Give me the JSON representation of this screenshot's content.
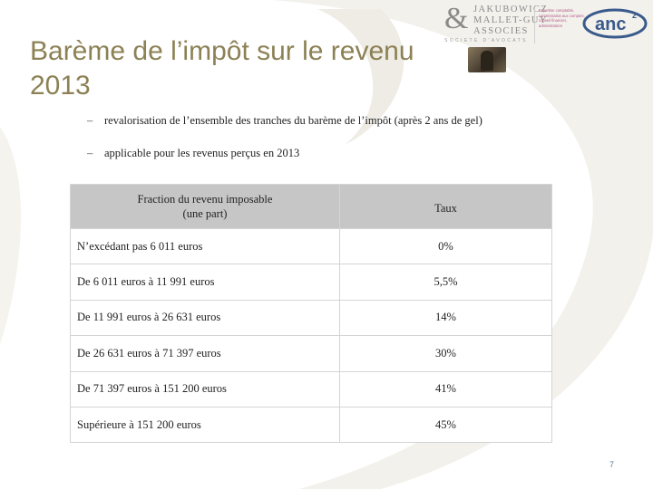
{
  "slide": {
    "title": "Barème de l’impôt sur le revenu 2013",
    "page_number": "7"
  },
  "logos": {
    "jmg": {
      "ampersand": "&",
      "line1": "JAKUBOWICZ",
      "line2": "MALLET-GUY",
      "line3": "ASSOCIES",
      "tagline": "SOCIETE D'AVOCATS"
    },
    "anc": {
      "small_text": "Expertise comptable, commissariat aux comptes, conseil financier, administration",
      "name": "anc",
      "superscript": "2",
      "brand_color": "#3a5a8c"
    }
  },
  "bullets": [
    {
      "dash": "–",
      "text": "revalorisation de l’ensemble des tranches du barème de l’impôt (après 2 ans de gel)"
    },
    {
      "dash": "–",
      "text": "applicable pour les revenus perçus en 2013"
    }
  ],
  "table": {
    "headers": {
      "col1_line1": "Fraction du revenu imposable",
      "col1_line2": "(une part)",
      "col2": "Taux"
    },
    "rows": [
      {
        "tranche": "N’excédant pas 6 011 euros",
        "taux": "0%"
      },
      {
        "tranche": "De 6 011 euros à 11 991 euros",
        "taux": "5,5%"
      },
      {
        "tranche": "De 11 991 euros à 26 631 euros",
        "taux": "14%"
      },
      {
        "tranche": "De 26 631 euros à 71 397 euros",
        "taux": "30%"
      },
      {
        "tranche": "De 71 397 euros à 151 200 euros",
        "taux": "41%"
      },
      {
        "tranche": "Supérieure à 151 200 euros",
        "taux": "45%"
      }
    ]
  },
  "colors": {
    "title": "#8c8155",
    "header_fill": "#c6c6c6",
    "page_number": "#5d7b9c"
  }
}
